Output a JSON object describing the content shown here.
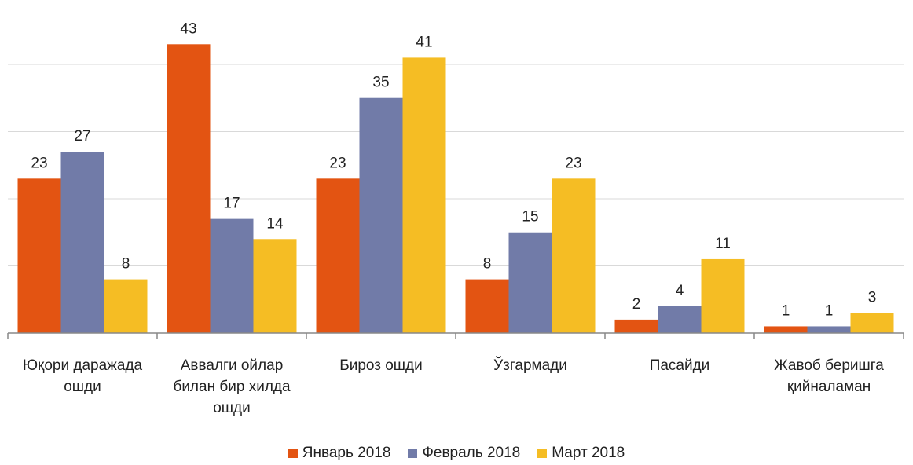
{
  "chart_data": {
    "type": "bar",
    "categories": [
      "Юқори даражада\nошди",
      "Аввалги ойлар\nбилан бир хилда\nошди",
      "Бироз ошди",
      "Ўзгармади",
      "Пасайди",
      "Жавоб беришга\nқийналаман"
    ],
    "series": [
      {
        "name": "Январь 2018",
        "color": "#e35412",
        "values": [
          23,
          43,
          23,
          8,
          2,
          1
        ]
      },
      {
        "name": "Февраль 2018",
        "color": "#717ba8",
        "values": [
          27,
          17,
          35,
          15,
          4,
          1
        ]
      },
      {
        "name": "Март 2018",
        "color": "#f5bd24",
        "values": [
          8,
          14,
          41,
          23,
          11,
          3
        ]
      }
    ],
    "ylim": [
      0,
      49
    ],
    "yticks": [
      0,
      10,
      20,
      30,
      40
    ],
    "grid": true,
    "legend": "bottom"
  }
}
